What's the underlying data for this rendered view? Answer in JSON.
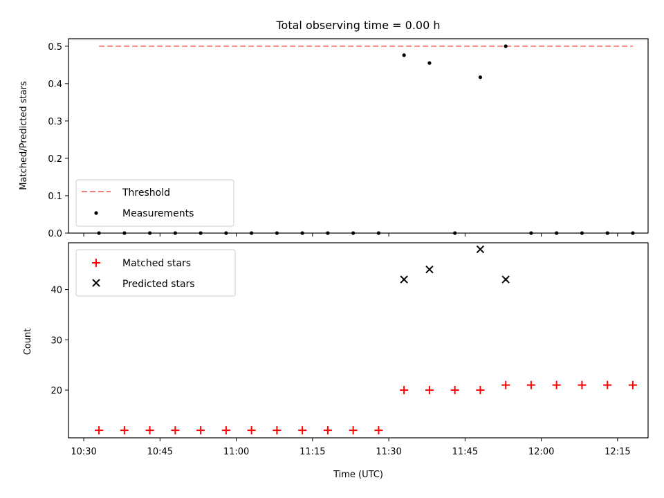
{
  "chart_data": {
    "title": "Total observing time = 0.00 h",
    "xlabel": "Time (UTC)",
    "x_tick_labels": [
      "10:30",
      "10:45",
      "11:00",
      "11:15",
      "11:30",
      "11:45",
      "12:00",
      "12:15"
    ],
    "x_tick_minutes": [
      630,
      645,
      660,
      675,
      690,
      705,
      720,
      735
    ],
    "x_range_minutes": [
      627,
      741
    ],
    "times": [
      "10:33",
      "10:38",
      "10:43",
      "10:48",
      "10:53",
      "10:58",
      "11:03",
      "11:08",
      "11:13",
      "11:18",
      "11:23",
      "11:28",
      "11:33",
      "11:38",
      "11:43",
      "11:48",
      "11:53",
      "11:58",
      "12:03",
      "12:08",
      "12:13",
      "12:18"
    ],
    "top": {
      "type": "scatter",
      "ylabel": "Matched/Predicted stars",
      "ylim": [
        0,
        0.52
      ],
      "y_ticks": [
        "0.0",
        "0.1",
        "0.2",
        "0.3",
        "0.4",
        "0.5"
      ],
      "threshold": {
        "name": "Threshold",
        "value": 0.5,
        "color": "#f08080"
      },
      "measurements": {
        "name": "Measurements",
        "color": "#000000",
        "values": [
          0,
          0,
          0,
          0,
          0,
          0,
          0,
          0,
          0,
          0,
          0,
          0,
          0.476,
          0.455,
          0,
          0.417,
          0.5,
          0,
          0,
          0,
          0,
          0
        ]
      },
      "legend_position": "lower-left"
    },
    "bottom": {
      "type": "scatter",
      "ylabel": "Count",
      "ylim": [
        10.5,
        49.3
      ],
      "y_ticks": [
        "20",
        "30",
        "40"
      ],
      "matched": {
        "name": "Matched stars",
        "color": "#ff0000",
        "marker": "+",
        "values": [
          12,
          12,
          12,
          12,
          12,
          12,
          12,
          12,
          12,
          12,
          12,
          12,
          20,
          20,
          20,
          20,
          21,
          21,
          21,
          21,
          21,
          21
        ]
      },
      "predicted": {
        "name": "Predicted stars",
        "color": "#000000",
        "marker": "x",
        "times": [
          "11:33",
          "11:38",
          "11:48",
          "11:53"
        ],
        "values": [
          42,
          44,
          48,
          42
        ]
      },
      "legend_position": "upper-left"
    }
  }
}
